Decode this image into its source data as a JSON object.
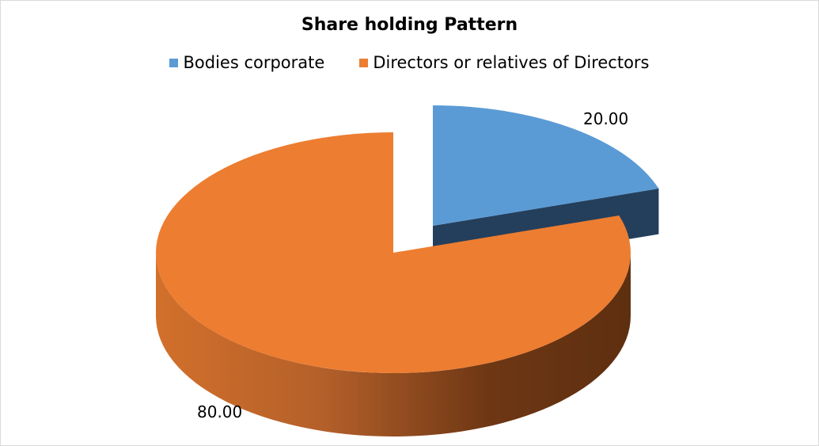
{
  "chart_data": {
    "type": "pie",
    "style": "3d-exploded",
    "title": "Share holding Pattern",
    "legend_position": "top",
    "series": [
      {
        "categories": [
          "Bodies corporate",
          "Directors or relatives of Directors"
        ],
        "values": [
          20.0,
          80.0
        ],
        "labels": [
          "20.00",
          "80.00"
        ]
      }
    ],
    "colors": {
      "Bodies corporate": {
        "top": "#5b9bd5",
        "side": "#243f5c"
      },
      "Directors or relatives of Directors": {
        "top": "#ed7d31",
        "side_light": "#d2702b",
        "side_dark": "#5e2f10"
      }
    }
  }
}
